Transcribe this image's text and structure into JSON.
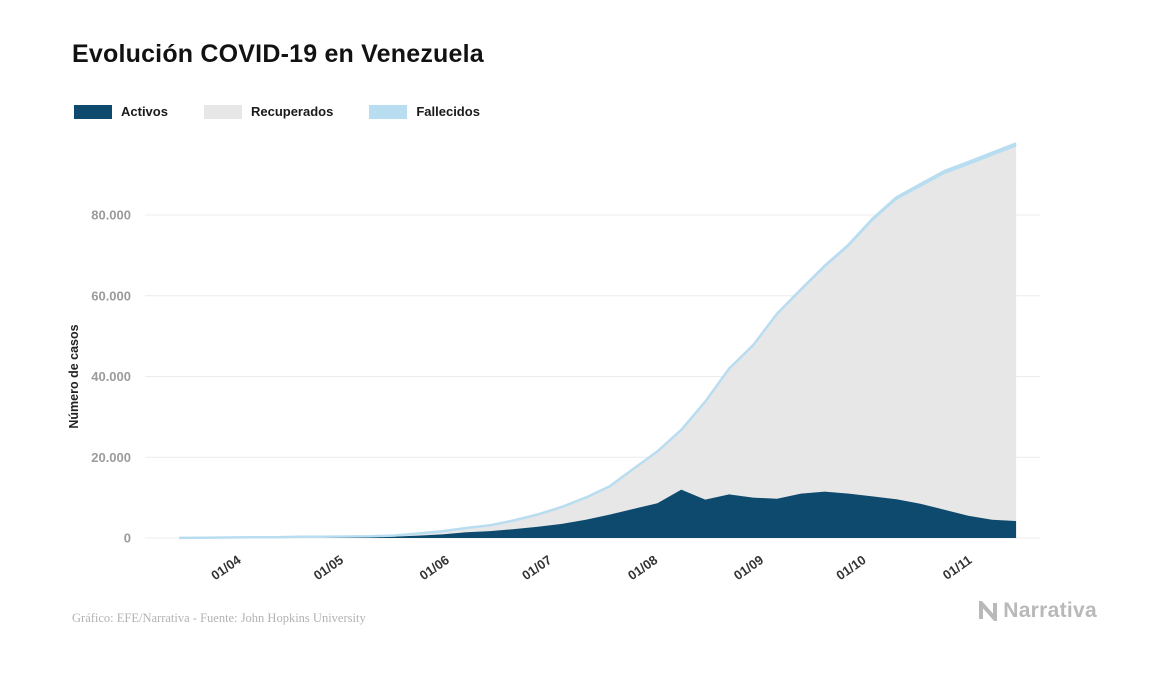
{
  "footer": {
    "credit": "Gráfico: EFE/Narrativa - Fuente: John Hopkins University",
    "brand": "Narrativa"
  },
  "chart_data": {
    "type": "area",
    "stacked": true,
    "title": "Evolución COVID-19 en Venezuela",
    "xlabel": "",
    "ylabel": "Número de casos",
    "grid": true,
    "legend_position": "top-left",
    "ylim": [
      0,
      98000
    ],
    "yticks": [
      0,
      20000,
      40000,
      60000,
      80000
    ],
    "xticks": [
      "01/04",
      "01/05",
      "01/06",
      "01/07",
      "01/08",
      "01/09",
      "01/10",
      "01/11"
    ],
    "x": [
      "16/03",
      "23/03",
      "30/03",
      "06/04",
      "13/04",
      "20/04",
      "27/04",
      "04/05",
      "11/05",
      "18/05",
      "25/05",
      "01/06",
      "08/06",
      "15/06",
      "22/06",
      "29/06",
      "06/07",
      "13/07",
      "20/07",
      "27/07",
      "03/08",
      "10/08",
      "17/08",
      "24/08",
      "31/08",
      "07/09",
      "14/09",
      "21/09",
      "28/09",
      "05/10",
      "12/10",
      "19/10",
      "26/10",
      "02/11",
      "09/11",
      "16/11"
    ],
    "series": [
      {
        "name": "Activos",
        "color": "#0e4a6e",
        "values": [
          33,
          80,
          120,
          100,
          80,
          150,
          180,
          200,
          250,
          350,
          600,
          900,
          1400,
          1700,
          2200,
          2800,
          3500,
          4500,
          5800,
          7200,
          8600,
          12000,
          9500,
          10800,
          10000,
          9700,
          11000,
          11500,
          11000,
          10300,
          9600,
          8500,
          7000,
          5500,
          4500,
          4200
        ]
      },
      {
        "name": "Recuperados",
        "color": "#e7e7e7",
        "values": [
          0,
          4,
          12,
          58,
          104,
          128,
          141,
          151,
          162,
          257,
          507,
          740,
          1045,
          1415,
          2121,
          2977,
          4122,
          5414,
          6854,
          9800,
          12648,
          14572,
          23974,
          30815,
          37358,
          45419,
          50077,
          55389,
          61087,
          68159,
          74085,
          78407,
          83092,
          86789,
          90111,
          92686
        ]
      },
      {
        "name": "Fallecidos",
        "color": "#b9ddf0",
        "values": [
          0,
          0,
          3,
          7,
          9,
          10,
          10,
          10,
          10,
          11,
          14,
          22,
          28,
          35,
          45,
          55,
          71,
          96,
          120,
          158,
          190,
          228,
          281,
          350,
          398,
          444,
          492,
          554,
          604,
          658,
          706,
          737,
          784,
          811,
          834,
          853
        ]
      }
    ]
  }
}
